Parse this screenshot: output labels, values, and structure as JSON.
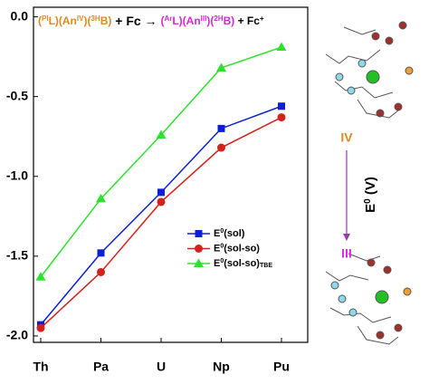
{
  "chart_data": {
    "type": "line",
    "title_left": [
      "(",
      "PI",
      "L)(An",
      "IV",
      ")(",
      "3H",
      "B)"
    ],
    "title_mid": " + Fc → ",
    "title_right": [
      "(",
      "Ar",
      "L)(An",
      "III",
      ")(",
      "2H",
      "B)"
    ],
    "title_end": [
      " + Fc",
      "+"
    ],
    "y_label": [
      "E",
      "0",
      " (V)"
    ],
    "state_top": "IV",
    "state_bottom": "III",
    "categories": [
      "Th",
      "Pa",
      "U",
      "Np",
      "Pu"
    ],
    "series": [
      {
        "name": [
          "E",
          "0",
          "(sol)"
        ],
        "color": "#0b1fd6",
        "marker": "square",
        "values": [
          -1.93,
          -1.48,
          -1.1,
          -0.7,
          -0.56
        ]
      },
      {
        "name": [
          "E",
          "0",
          "(sol-so)"
        ],
        "color": "#d3221c",
        "marker": "circle",
        "values": [
          -1.95,
          -1.6,
          -1.16,
          -0.82,
          -0.63
        ]
      },
      {
        "name": [
          "E",
          "0",
          "(sol-so)",
          "TBE"
        ],
        "color": "#2de22d",
        "marker": "triangle",
        "values": [
          -1.63,
          -1.14,
          -0.74,
          -0.32,
          -0.19
        ]
      }
    ],
    "ylim": [
      -2.04,
      0.06
    ],
    "yticks": [
      {
        "value": 0,
        "label": "0.0"
      },
      -0.5,
      {
        "value": -1,
        "label": "-1.0"
      },
      -1.5,
      {
        "value": -2,
        "label": "-2.0"
      }
    ]
  }
}
